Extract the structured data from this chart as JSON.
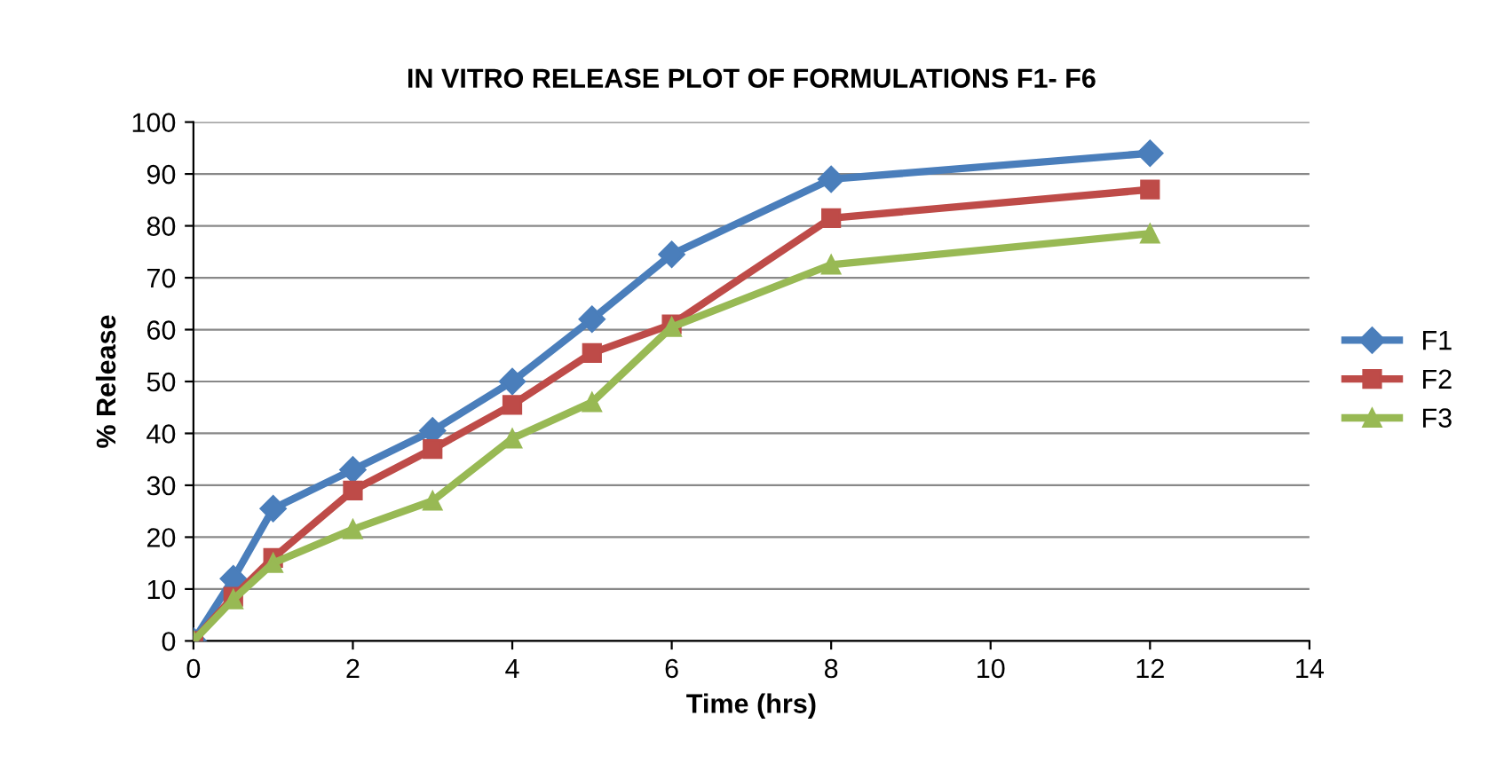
{
  "chart_data": {
    "type": "line",
    "title": "IN VITRO RELEASE PLOT OF FORMULATIONS F1- F6",
    "xlabel": "Time (hrs)",
    "ylabel": "% Release",
    "x": [
      0,
      0.5,
      1,
      2,
      3,
      4,
      5,
      6,
      8,
      12
    ],
    "series": [
      {
        "name": "F1",
        "color": "#4a7ebb",
        "marker": "diamond",
        "values": [
          0,
          12,
          25.5,
          33,
          40.5,
          50,
          62,
          74.5,
          89,
          94
        ]
      },
      {
        "name": "F2",
        "color": "#be4b48",
        "marker": "square",
        "values": [
          0,
          8.5,
          16,
          29,
          37,
          45.5,
          55.5,
          61,
          81.5,
          87
        ]
      },
      {
        "name": "F3",
        "color": "#98b954",
        "marker": "triangle",
        "values": [
          0,
          8,
          15,
          21.5,
          27,
          39,
          46,
          60.5,
          72.5,
          78.5
        ]
      }
    ],
    "xlim": [
      0,
      14
    ],
    "xticks": [
      0,
      2,
      4,
      6,
      8,
      10,
      12,
      14
    ],
    "ylim": [
      0,
      100
    ],
    "yticks": [
      0,
      10,
      20,
      30,
      40,
      50,
      60,
      70,
      80,
      90,
      100
    ],
    "grid": "y",
    "legend": "right",
    "line_style": "solid"
  }
}
